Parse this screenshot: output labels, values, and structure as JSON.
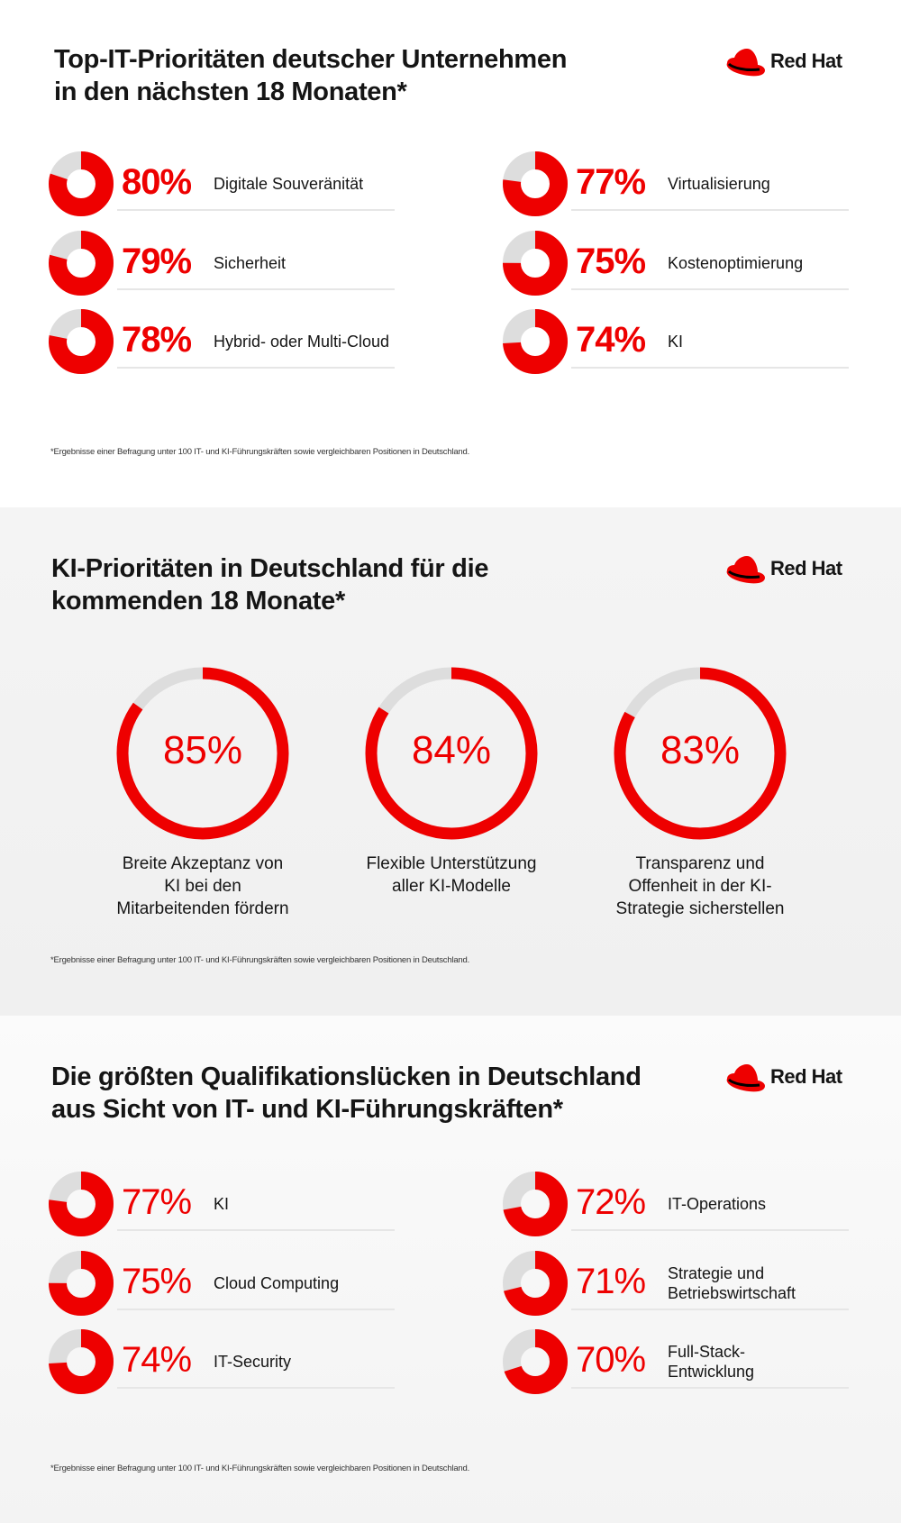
{
  "colors": {
    "accent": "#ee0000",
    "track": "#dddddd"
  },
  "logo_text": "Red Hat",
  "footnote": "*Ergebnisse einer Befragung unter 100 IT- und KI-Führungskräften sowie vergleichbaren Positionen in Deutschland.",
  "section1": {
    "title_line1": "Top-IT-Prioritäten deutscher Unternehmen",
    "title_line2": "in den nächsten 18 Monaten*",
    "items": [
      {
        "value": 80,
        "pct": "80%",
        "label": "Digitale Souveränität"
      },
      {
        "value": 79,
        "pct": "79%",
        "label": "Sicherheit"
      },
      {
        "value": 78,
        "pct": "78%",
        "label": "Hybrid- oder Multi-Cloud"
      },
      {
        "value": 77,
        "pct": "77%",
        "label": "Virtualisierung"
      },
      {
        "value": 75,
        "pct": "75%",
        "label": "Kostenoptimierung"
      },
      {
        "value": 74,
        "pct": "74%",
        "label": "KI"
      }
    ]
  },
  "section2": {
    "title_line1": "KI-Prioritäten in Deutschland für die",
    "title_line2": "kommenden 18 Monate*",
    "items": [
      {
        "value": 85,
        "pct": "85%",
        "label": "Breite Akzeptanz von KI bei den Mitarbeitenden fördern"
      },
      {
        "value": 84,
        "pct": "84%",
        "label": "Flexible Unterstützung aller KI-Modelle"
      },
      {
        "value": 83,
        "pct": "83%",
        "label": "Transparenz und Offenheit in der KI-Strategie sicherstellen"
      }
    ]
  },
  "section3": {
    "title_line1": "Die größten Qualifikationslücken in Deutschland",
    "title_line2": "aus Sicht von IT- und KI-Führungskräften*",
    "items": [
      {
        "value": 77,
        "pct": "77%",
        "label": "KI"
      },
      {
        "value": 75,
        "pct": "75%",
        "label": "Cloud Computing"
      },
      {
        "value": 74,
        "pct": "74%",
        "label": "IT-Security"
      },
      {
        "value": 72,
        "pct": "72%",
        "label": "IT-Operations"
      },
      {
        "value": 71,
        "pct": "71%",
        "label": "Strategie und Betriebswirtschaft"
      },
      {
        "value": 70,
        "pct": "70%",
        "label": "Full-Stack-Entwicklung"
      }
    ]
  }
}
